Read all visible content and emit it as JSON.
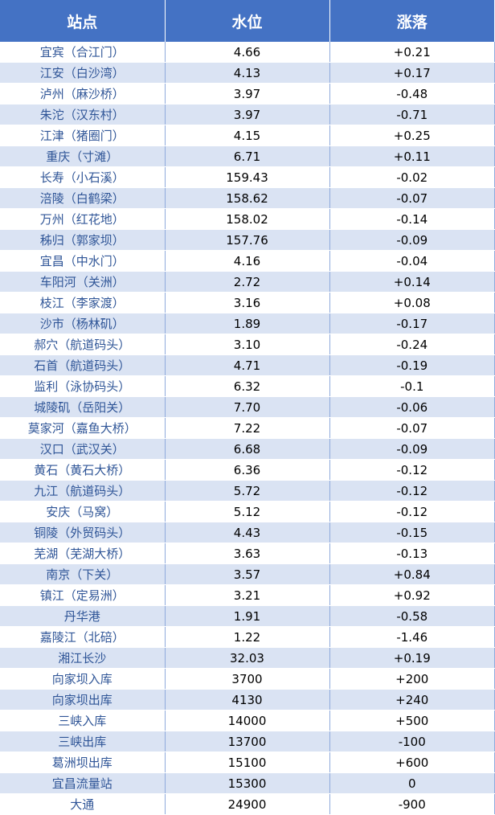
{
  "table": {
    "header": [
      "站点",
      "水位",
      "涨落"
    ],
    "rows": [
      [
        "宜宾（合江门）",
        "4.66",
        "+0.21"
      ],
      [
        "江安（白沙湾）",
        "4.13",
        "+0.17"
      ],
      [
        "泸州（麻沙桥）",
        "3.97",
        "-0.48"
      ],
      [
        "朱沱（汉东村）",
        "3.97",
        "-0.71"
      ],
      [
        "江津（猪圈门）",
        "4.15",
        "+0.25"
      ],
      [
        "重庆（寸滩）",
        "6.71",
        "+0.11"
      ],
      [
        "长寿（小石溪）",
        "159.43",
        "-0.02"
      ],
      [
        "涪陵（白鹤梁）",
        "158.62",
        "-0.07"
      ],
      [
        "万州（红花地）",
        "158.02",
        "-0.14"
      ],
      [
        "秭归（郭家坝）",
        "157.76",
        "-0.09"
      ],
      [
        "宜昌（中水门）",
        "4.16",
        "-0.04"
      ],
      [
        "车阳河（关洲）",
        "2.72",
        "+0.14"
      ],
      [
        "枝江（李家渡）",
        "3.16",
        "+0.08"
      ],
      [
        "沙市（杨林矶）",
        "1.89",
        "-0.17"
      ],
      [
        "郝穴（航道码头）",
        "3.10",
        "-0.24"
      ],
      [
        "石首（航道码头）",
        "4.71",
        "-0.19"
      ],
      [
        "监利（泳协码头）",
        "6.32",
        "-0.1"
      ],
      [
        "城陵矶（岳阳关）",
        "7.70",
        "-0.06"
      ],
      [
        "莫家河（嘉鱼大桥）",
        "7.22",
        "-0.07"
      ],
      [
        "汉口（武汉关）",
        "6.68",
        "-0.09"
      ],
      [
        "黄石（黄石大桥）",
        "6.36",
        "-0.12"
      ],
      [
        "九江（航道码头）",
        "5.72",
        "-0.12"
      ],
      [
        "安庆（马窝）",
        "5.12",
        "-0.12"
      ],
      [
        "铜陵（外贸码头）",
        "4.43",
        "-0.15"
      ],
      [
        "芜湖（芜湖大桥）",
        "3.63",
        "-0.13"
      ],
      [
        "南京（下关）",
        "3.57",
        "+0.84"
      ],
      [
        "镇江（定易洲）",
        "3.21",
        "+0.92"
      ],
      [
        "丹华港",
        "1.91",
        "-0.58"
      ],
      [
        "嘉陵江（北碚）",
        "1.22",
        "-1.46"
      ],
      [
        "湘江长沙",
        "32.03",
        "+0.19"
      ],
      [
        "向家坝入库",
        "3700",
        "+200"
      ],
      [
        "向家坝出库",
        "4130",
        "+240"
      ],
      [
        "三峡入库",
        "14000",
        "+500"
      ],
      [
        "三峡出库",
        "13700",
        "-100"
      ],
      [
        "葛洲坝出库",
        "15100",
        "+600"
      ],
      [
        "宜昌流量站",
        "15300",
        "0"
      ],
      [
        "大通",
        "24900",
        "-900"
      ]
    ]
  }
}
